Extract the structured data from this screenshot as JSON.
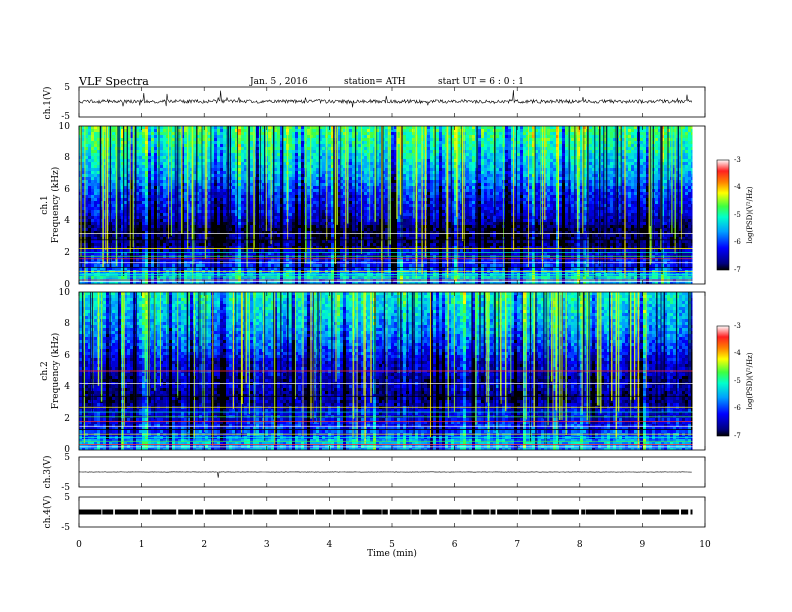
{
  "header": {
    "title": "VLF  Spectra",
    "date": "Jan.  5  , 2016",
    "station": "station= ATH",
    "start": "start  UT  =    6  : 0  : 1"
  },
  "chart_data": [
    {
      "type": "line",
      "panel": "ch1-waveform",
      "ylabel": "ch.1(V)",
      "ylim": [
        -5,
        5
      ],
      "yticks": [
        "5",
        "-5"
      ],
      "x_range_min": [
        0,
        9.8
      ],
      "baseline_v": 0.2,
      "color": "#000000"
    },
    {
      "type": "heatmap",
      "panel": "ch1-spectrogram",
      "ylabel": "ch.1\nFrequency  (kHz)",
      "ylim": [
        0,
        10
      ],
      "yticks": [
        "0",
        "2",
        "4",
        "6",
        "8",
        "10"
      ],
      "x_range_min": [
        0,
        9.8
      ],
      "profile": [
        {
          "f": 0.0,
          "v": -5.6
        },
        {
          "f": 0.5,
          "v": -5.3
        },
        {
          "f": 1.0,
          "v": -6.0
        },
        {
          "f": 1.5,
          "v": -6.2
        },
        {
          "f": 2.0,
          "v": -6.4
        },
        {
          "f": 2.5,
          "v": -6.8
        },
        {
          "f": 3.0,
          "v": -6.8
        },
        {
          "f": 3.5,
          "v": -6.9
        },
        {
          "f": 4.0,
          "v": -6.5
        },
        {
          "f": 4.5,
          "v": -6.3
        },
        {
          "f": 5.0,
          "v": -6.2
        },
        {
          "f": 5.5,
          "v": -6.1
        },
        {
          "f": 6.0,
          "v": -5.9
        },
        {
          "f": 6.5,
          "v": -5.7
        },
        {
          "f": 7.0,
          "v": -5.5
        },
        {
          "f": 7.5,
          "v": -5.4
        },
        {
          "f": 8.0,
          "v": -5.3
        },
        {
          "f": 8.5,
          "v": -5.1
        },
        {
          "f": 9.0,
          "v": -5.0
        },
        {
          "f": 9.5,
          "v": -4.9
        },
        {
          "f": 10.0,
          "v": -4.8
        }
      ],
      "lines_khz": [
        0.15,
        0.25,
        0.45,
        0.6,
        0.8,
        1.05,
        1.35,
        1.6,
        1.75,
        2.0,
        2.25,
        2.8,
        3.2
      ],
      "colorbar": {
        "label": "log(PSD)(V²/Hz)",
        "range": [
          -7,
          -3
        ],
        "ticks": [
          "-3",
          "-4",
          "-5",
          "-6",
          "-7"
        ]
      }
    },
    {
      "type": "heatmap",
      "panel": "ch2-spectrogram",
      "ylabel": "ch.2\nFrequency  (kHz)",
      "ylim": [
        0,
        10
      ],
      "yticks": [
        "0",
        "2",
        "4",
        "6",
        "8",
        "10"
      ],
      "x_range_min": [
        0,
        9.8
      ],
      "profile": [
        {
          "f": 0.0,
          "v": -5.6
        },
        {
          "f": 0.5,
          "v": -5.5
        },
        {
          "f": 1.0,
          "v": -5.9
        },
        {
          "f": 1.5,
          "v": -6.1
        },
        {
          "f": 2.0,
          "v": -6.3
        },
        {
          "f": 2.5,
          "v": -6.3
        },
        {
          "f": 3.0,
          "v": -6.6
        },
        {
          "f": 3.5,
          "v": -6.7
        },
        {
          "f": 4.0,
          "v": -6.4
        },
        {
          "f": 4.5,
          "v": -6.6
        },
        {
          "f": 5.0,
          "v": -6.3
        },
        {
          "f": 5.5,
          "v": -6.4
        },
        {
          "f": 6.0,
          "v": -6.1
        },
        {
          "f": 6.5,
          "v": -5.9
        },
        {
          "f": 7.0,
          "v": -5.8
        },
        {
          "f": 7.5,
          "v": -5.6
        },
        {
          "f": 8.0,
          "v": -5.5
        },
        {
          "f": 8.5,
          "v": -5.4
        },
        {
          "f": 9.0,
          "v": -5.3
        },
        {
          "f": 9.5,
          "v": -5.2
        },
        {
          "f": 10.0,
          "v": -5.1
        }
      ],
      "lines_khz": [
        0.2,
        0.35,
        0.55,
        0.8,
        1.0,
        1.3,
        1.5,
        1.8,
        2.1,
        2.4,
        2.7,
        3.4,
        4.2,
        5.0
      ],
      "colorbar": {
        "label": "log(PSD)(V²/Hz)",
        "range": [
          -7,
          -3
        ],
        "ticks": [
          "-3",
          "-4",
          "-5",
          "-6",
          "-7"
        ]
      }
    },
    {
      "type": "line",
      "panel": "ch3-waveform",
      "ylabel": "ch.3(V)",
      "ylim": [
        -5,
        5
      ],
      "yticks": [
        "5",
        "-5"
      ],
      "x_range_min": [
        0,
        9.8
      ],
      "baseline_v": 0.0,
      "color": "#000000"
    },
    {
      "type": "line",
      "panel": "ch4-waveform",
      "ylabel": "ch.4(V)",
      "ylim": [
        -5,
        5
      ],
      "yticks": [
        "5",
        "-5"
      ],
      "x_range_min": [
        0,
        9.8
      ],
      "baseline_v": 0.0,
      "color": "#000000"
    }
  ],
  "xaxis": {
    "label": "Time  (min)",
    "range": [
      0,
      10
    ],
    "ticks": [
      "0",
      "1",
      "2",
      "3",
      "4",
      "5",
      "6",
      "7",
      "8",
      "9",
      "10"
    ]
  }
}
